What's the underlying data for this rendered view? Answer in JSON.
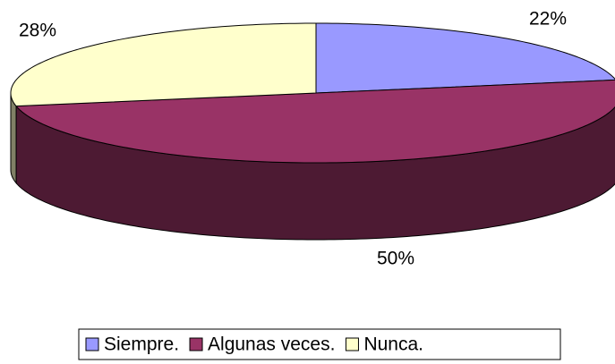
{
  "chart_data": {
    "type": "pie",
    "categories": [
      "Siempre.",
      "Algunas veces.",
      "Nunca."
    ],
    "values": [
      22,
      50,
      28
    ],
    "value_labels": [
      "22%",
      "50%",
      "28%"
    ],
    "colors": [
      "#9999ff",
      "#993366",
      "#ffffcc"
    ],
    "legend": "bottom"
  }
}
